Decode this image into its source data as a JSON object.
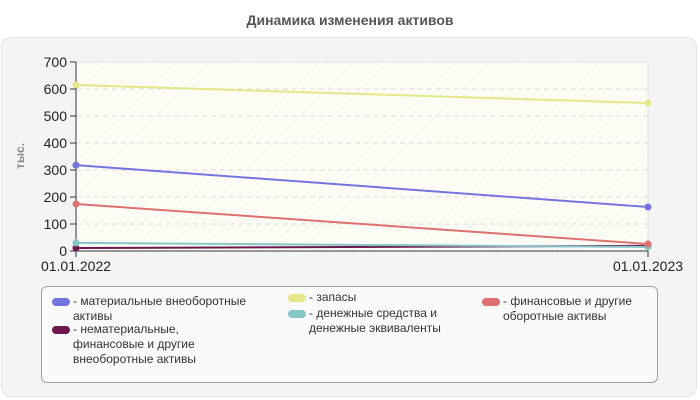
{
  "title": "Динамика изменения активов",
  "chart_data": {
    "type": "line",
    "title": "Динамика изменения активов",
    "xlabel": "",
    "ylabel": "тыс.",
    "ylim": [
      0,
      700
    ],
    "yticks": [
      0,
      100,
      200,
      300,
      400,
      500,
      600,
      700
    ],
    "grid": true,
    "legend_position": "bottom",
    "x": [
      "01.01.2022",
      "01.01.2023"
    ],
    "series": [
      {
        "name": "материальные внеоборотные активы",
        "color": "#7474e0",
        "values": [
          318,
          163
        ]
      },
      {
        "name": "нематериальные, финансовые и другие внеоборотные активы",
        "color": "#6f1850",
        "values": [
          11,
          19
        ]
      },
      {
        "name": "запасы",
        "color": "#e6e68a",
        "values": [
          615,
          548
        ]
      },
      {
        "name": "денежные средства и денежные эквиваленты",
        "color": "#86c6c6",
        "values": [
          30,
          15
        ]
      },
      {
        "name": "финансовые и другие оборотные активы",
        "color": "#de7070",
        "values": [
          174,
          26
        ]
      }
    ]
  },
  "legend": [
    {
      "label": "- материальные внеоборотные\nактивы",
      "color": "#7474e0"
    },
    {
      "label": "- нематериальные,\nфинансовые и другие\nвнеоборотные активы",
      "color": "#6f1850"
    },
    {
      "label": "- запасы",
      "color": "#e6e68a"
    },
    {
      "label": "- денежные средства и\nденежные эквиваленты",
      "color": "#86c6c6"
    },
    {
      "label": "- финансовые и другие\nоборотные активы",
      "color": "#de7070"
    }
  ]
}
